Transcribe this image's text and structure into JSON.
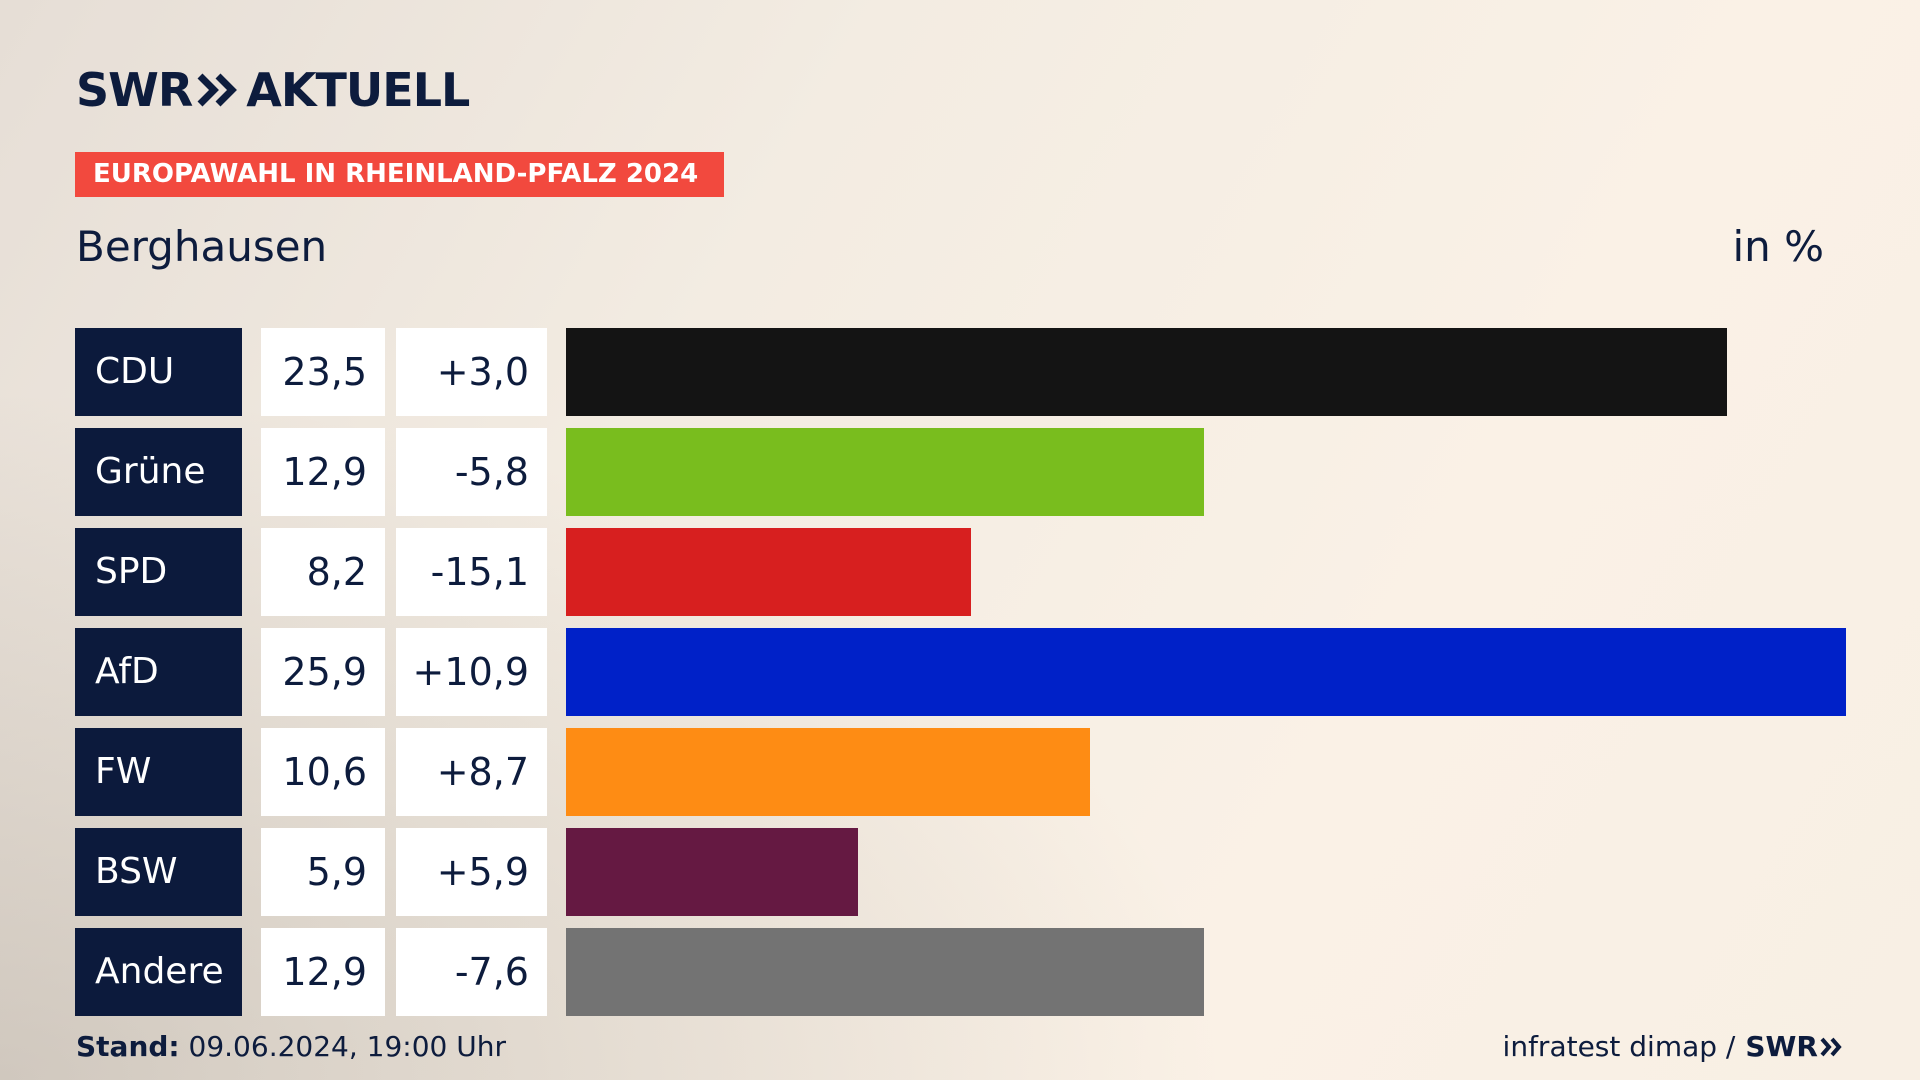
{
  "header": {
    "brand_left": "SWR",
    "brand_right": "AKTUELL",
    "banner": "EUROPAWAHL IN RHEINLAND-PFALZ 2024",
    "location": "Berghausen",
    "unit": "in %"
  },
  "footer": {
    "stand_label": "Stand:",
    "stand_value": "09.06.2024, 19:00 Uhr",
    "source": "infratest dimap /",
    "source_brand": "SWR"
  },
  "colors": {
    "navy": "#0c1a3c",
    "banner": "#f2493e"
  },
  "chart_data": {
    "type": "bar",
    "orientation": "horizontal",
    "title": "Berghausen",
    "unit": "in %",
    "categories": [
      "CDU",
      "Grüne",
      "SPD",
      "AfD",
      "FW",
      "BSW",
      "Andere"
    ],
    "values": [
      23.5,
      12.9,
      8.2,
      25.9,
      10.6,
      5.9,
      12.9
    ],
    "value_labels": [
      "23,5",
      "12,9",
      "8,2",
      "25,9",
      "10,6",
      "5,9",
      "12,9"
    ],
    "diff_labels": [
      "+3,0",
      "-5,8",
      "-15,1",
      "+10,9",
      "+8,7",
      "+5,9",
      "-7,6"
    ],
    "bar_colors": [
      "#141414",
      "#79bd1e",
      "#d71f1f",
      "#0021c8",
      "#fe8c14",
      "#651942",
      "#737373"
    ],
    "xlim": [
      0,
      25.9
    ],
    "grid": false
  }
}
